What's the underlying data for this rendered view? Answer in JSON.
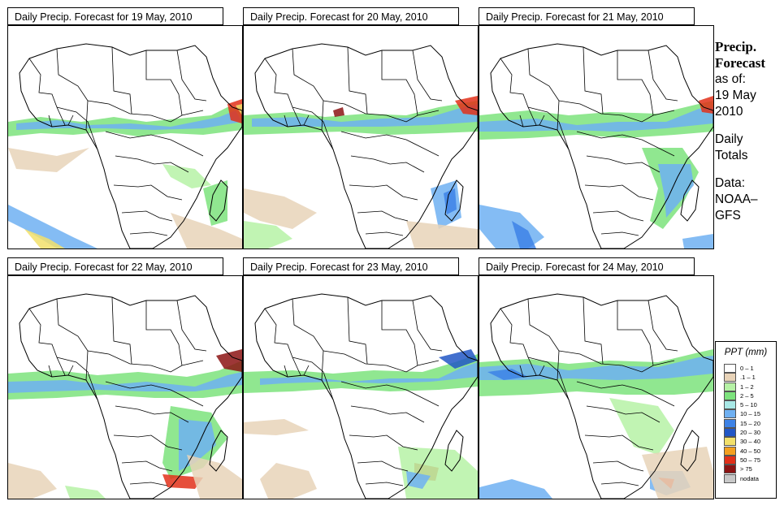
{
  "panels": [
    {
      "title": "Daily Precip. Forecast for  19 May, 2010"
    },
    {
      "title": "Daily Precip. Forecast for  20 May, 2010"
    },
    {
      "title": "Daily Precip. Forecast for  21 May, 2010"
    },
    {
      "title": "Daily Precip. Forecast for  22 May, 2010"
    },
    {
      "title": "Daily Precip. Forecast for  23 May, 2010"
    },
    {
      "title": "Daily Precip. Forecast for  24 May, 2010"
    }
  ],
  "side": {
    "title_line1": "Precip.",
    "title_line2": "Forecast",
    "asof": "as of:",
    "date_line1": "19 May",
    "date_line2": "2010",
    "daily1": "Daily",
    "daily2": "Totals",
    "data1": "Data:",
    "data2": "NOAA–",
    "data3": "GFS"
  },
  "legend": {
    "title": "PPT (mm)",
    "items": [
      {
        "label": "0 – 1",
        "color": "#ffffff"
      },
      {
        "label": ".1 – 1",
        "color": "#e8d3b8"
      },
      {
        "label": "1 – 2",
        "color": "#b6f2a6"
      },
      {
        "label": "2 – 5",
        "color": "#7de37d"
      },
      {
        "label": "5 – 10",
        "color": "#a8e8e6"
      },
      {
        "label": "10 – 15",
        "color": "#6fb0f2"
      },
      {
        "label": "15 – 20",
        "color": "#3d82e6"
      },
      {
        "label": "20 – 30",
        "color": "#2257c6"
      },
      {
        "label": "30 – 40",
        "color": "#f2e06b"
      },
      {
        "label": "40 – 50",
        "color": "#f4a020"
      },
      {
        "label": "50 – 75",
        "color": "#e23019"
      },
      {
        "label": "> 75",
        "color": "#8c1414"
      },
      {
        "label": "nodata",
        "color": "#c8c8c8"
      }
    ]
  }
}
